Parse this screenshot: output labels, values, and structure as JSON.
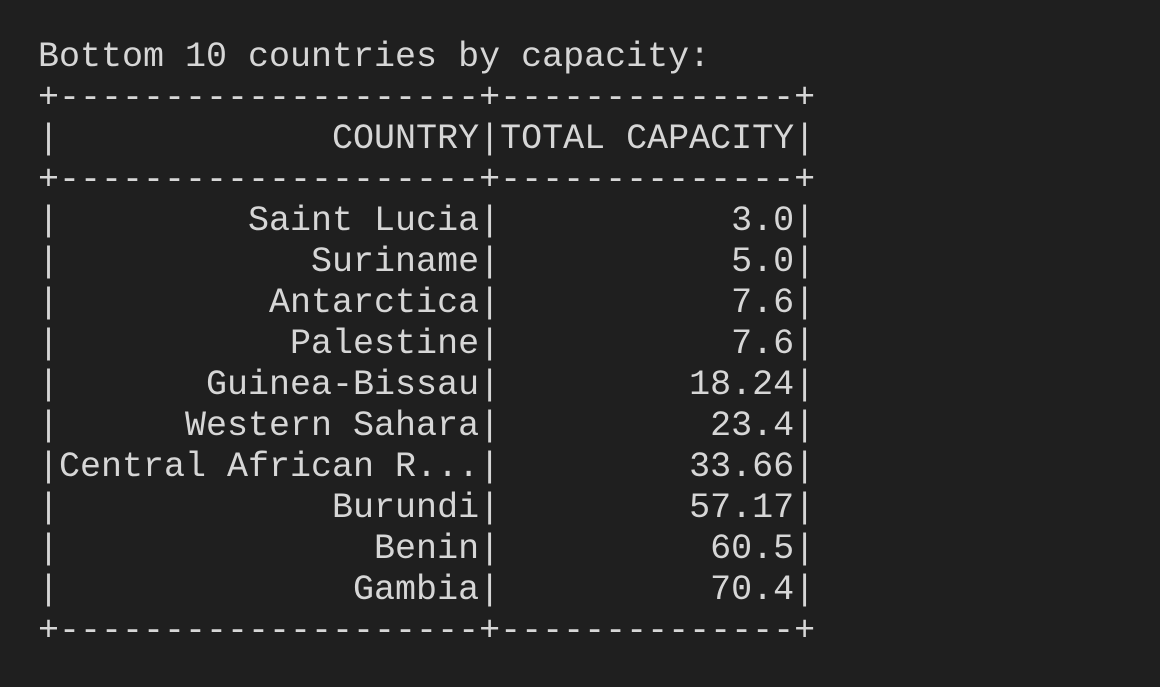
{
  "output": {
    "heading": "Bottom 10 countries by capacity:",
    "border_line": "+--------------------+--------------+",
    "header_line": "|             COUNTRY|TOTAL CAPACITY|",
    "rows": [
      "|         Saint Lucia|           3.0|",
      "|            Suriname|           5.0|",
      "|          Antarctica|           7.6|",
      "|           Palestine|           7.6|",
      "|       Guinea-Bissau|         18.24|",
      "|      Western Sahara|          23.4|",
      "|Central African R...|         33.66|",
      "|             Burundi|         57.17|",
      "|               Benin|          60.5|",
      "|              Gambia|          70.4|"
    ]
  }
}
